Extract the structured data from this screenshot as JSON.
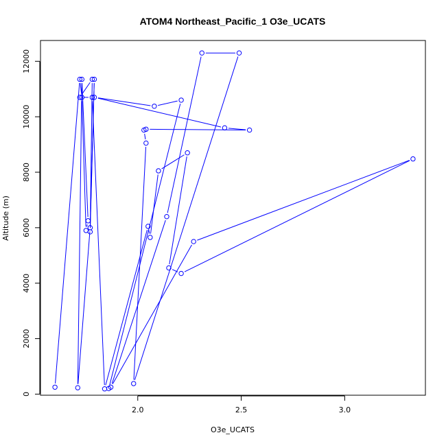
{
  "chart_data": {
    "type": "line",
    "title": "ATOM4 Northeast_Pacific_1 O3e_UCATS",
    "xlabel": "O3e_UCATS",
    "ylabel": "Altitude (m)",
    "xlim": [
      1.53,
      3.39
    ],
    "ylim": [
      -40,
      12750
    ],
    "x_ticks": [
      2.0,
      2.5,
      3.0
    ],
    "x_tick_labels": [
      "2.0",
      "2.5",
      "3.0"
    ],
    "y_ticks": [
      0,
      2000,
      4000,
      6000,
      8000,
      10000,
      12000
    ],
    "y_tick_labels": [
      "0",
      "2000",
      "4000",
      "6000",
      "8000",
      "10000",
      "12000"
    ],
    "series_color": "#0000ff",
    "marker": "open-circle",
    "grid": false,
    "series": [
      {
        "x": [
          1.6,
          1.72,
          1.73,
          1.75,
          1.76,
          1.73,
          1.71,
          1.77,
          1.79,
          1.77,
          1.78,
          1.72,
          1.78,
          1.84,
          2.05,
          2.06,
          2.1,
          2.24,
          2.15,
          2.21,
          3.33,
          2.27,
          1.87,
          2.14,
          2.31,
          2.49,
          1.98,
          2.04,
          2.03,
          2.04,
          2.54,
          2.42,
          1.79,
          2.08,
          2.21,
          1.86
        ],
        "y": [
          250,
          11350,
          10700,
          5900,
          6250,
          11350,
          230,
          6000,
          11350,
          5850,
          11350,
          10700,
          10700,
          190,
          6050,
          5650,
          8050,
          8700,
          4550,
          4350,
          8480,
          5500,
          250,
          6400,
          12300,
          12300,
          380,
          9050,
          9520,
          9550,
          9520,
          9600,
          10700,
          10380,
          10600,
          200
        ]
      }
    ]
  }
}
